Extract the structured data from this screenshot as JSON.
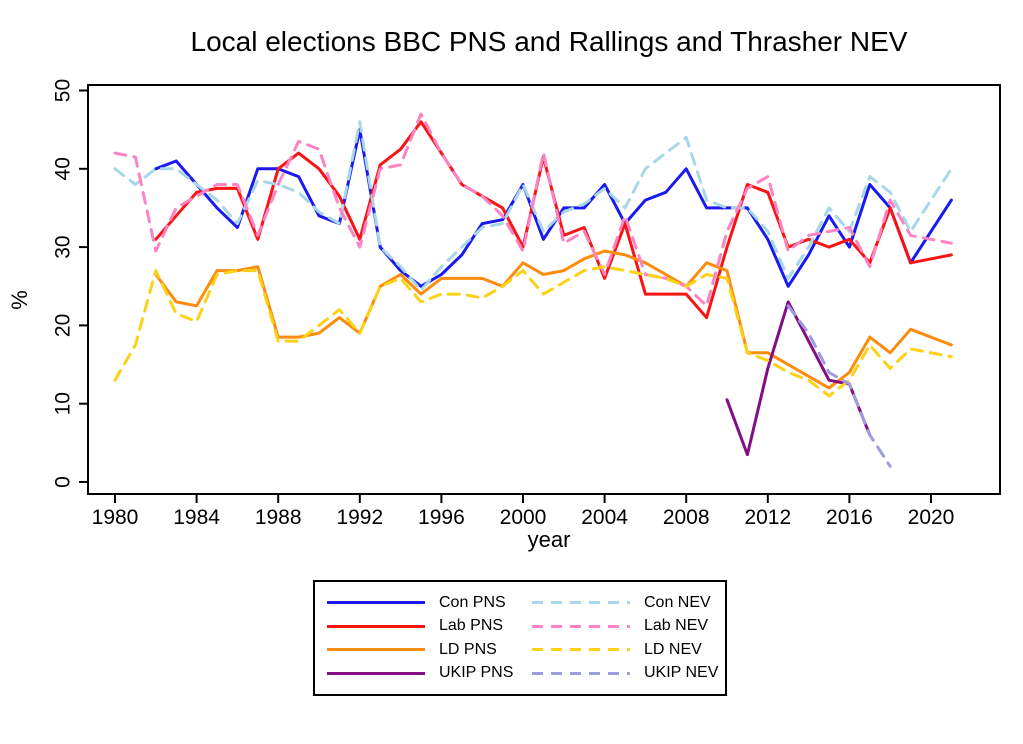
{
  "chart_data": {
    "type": "line",
    "title": "Local elections BBC PNS and Rallings and Thrasher NEV",
    "xlabel": "year",
    "ylabel": "%",
    "ylim": [
      0,
      50
    ],
    "xlim": [
      1980,
      2021
    ],
    "grid": false,
    "legend_position": "bottom",
    "note_2020": "no data for 2020; lines connect 2019 to 2021",
    "years": [
      1980,
      1981,
      1982,
      1983,
      1984,
      1985,
      1986,
      1987,
      1988,
      1989,
      1990,
      1991,
      1992,
      1993,
      1994,
      1995,
      1996,
      1997,
      1998,
      1999,
      2000,
      2001,
      2002,
      2003,
      2004,
      2005,
      2006,
      2007,
      2008,
      2009,
      2010,
      2011,
      2012,
      2013,
      2014,
      2015,
      2016,
      2017,
      2018,
      2019,
      2020,
      2021
    ],
    "yticks": [
      0,
      10,
      20,
      30,
      40,
      50
    ],
    "xticks": [
      1980,
      1984,
      1988,
      1992,
      1996,
      2000,
      2004,
      2008,
      2012,
      2016,
      2020
    ],
    "series": [
      {
        "name": "Con PNS",
        "color": "#1A1AF0",
        "dashed": false,
        "values": [
          null,
          null,
          40,
          41,
          38,
          35,
          32.5,
          40,
          40,
          39,
          34,
          33,
          45,
          30,
          27,
          25,
          26.5,
          29,
          33,
          33.5,
          38,
          31,
          35,
          35,
          38,
          33,
          36,
          37,
          40,
          35,
          35,
          35,
          31,
          25,
          29,
          34,
          30,
          38,
          35,
          28,
          null,
          36
        ]
      },
      {
        "name": "Lab PNS",
        "color": "#F81414",
        "dashed": false,
        "values": [
          null,
          null,
          31,
          34,
          37,
          37.5,
          37.5,
          31,
          40,
          42,
          40,
          36.5,
          31,
          40.5,
          42.5,
          46,
          42,
          38,
          36.5,
          35,
          30,
          41.5,
          31.5,
          32.5,
          26,
          33,
          24,
          24,
          24,
          21,
          30,
          38,
          37,
          30,
          31,
          30,
          31,
          28,
          35,
          28,
          null,
          29
        ]
      },
      {
        "name": "LD PNS",
        "color": "#FB8C0D",
        "dashed": false,
        "values": [
          null,
          null,
          26.5,
          23,
          22.5,
          27,
          27,
          27.5,
          18.5,
          18.5,
          19,
          21,
          19,
          25,
          26.5,
          24,
          26,
          26,
          26,
          25,
          28,
          26.5,
          27,
          28.5,
          29.5,
          29,
          28,
          26.5,
          25,
          28,
          27,
          16.5,
          16.5,
          15,
          13.5,
          12,
          14,
          18.5,
          16.5,
          19.5,
          null,
          17.5
        ]
      },
      {
        "name": "UKIP PNS",
        "color": "#840E84",
        "dashed": false,
        "values": [
          null,
          null,
          null,
          null,
          null,
          null,
          null,
          null,
          null,
          null,
          null,
          null,
          null,
          null,
          null,
          null,
          null,
          null,
          null,
          null,
          null,
          null,
          null,
          null,
          null,
          null,
          null,
          null,
          null,
          null,
          10.5,
          3.5,
          14.5,
          23,
          18,
          13,
          12.5,
          6,
          null,
          null,
          null,
          null
        ]
      },
      {
        "name": "Con NEV",
        "color": "#A8D7E8",
        "dashed": true,
        "values": [
          40,
          38,
          40,
          40,
          38,
          36,
          33,
          38.5,
          38,
          37,
          34.5,
          33,
          46,
          30,
          27.5,
          24.5,
          27.5,
          30,
          32.5,
          33,
          38,
          32,
          34.5,
          35.5,
          37.5,
          35,
          40,
          42,
          44,
          36,
          35,
          35,
          32,
          26,
          30,
          35,
          32,
          39,
          37,
          32,
          null,
          40
        ]
      },
      {
        "name": "Lab NEV",
        "color": "#FC84C4",
        "dashed": true,
        "values": [
          42,
          41.5,
          29.5,
          35,
          36.5,
          38,
          38,
          31.5,
          38,
          43.5,
          42.5,
          35,
          30,
          40,
          40.5,
          47,
          42,
          38,
          36.5,
          34,
          29.5,
          42,
          30.5,
          32,
          26.5,
          34,
          26.5,
          26,
          25,
          22.5,
          32,
          37.5,
          39,
          29.5,
          31.5,
          32,
          32.5,
          27.5,
          36,
          31.5,
          null,
          30.5
        ]
      },
      {
        "name": "LD NEV",
        "color": "#FCD116",
        "dashed": true,
        "values": [
          13,
          17.5,
          27,
          21.5,
          20.5,
          26.5,
          27,
          27,
          18,
          18,
          20,
          22,
          19,
          25,
          26,
          23,
          24,
          24,
          23.5,
          25,
          27,
          24,
          25.5,
          27,
          27.5,
          27,
          26.5,
          26,
          25,
          26.5,
          26,
          16.5,
          15.5,
          14,
          13,
          11,
          13,
          17.5,
          14.5,
          17,
          null,
          16
        ]
      },
      {
        "name": "UKIP NEV",
        "color": "#9C9CDE",
        "dashed": true,
        "values": [
          null,
          null,
          null,
          null,
          null,
          null,
          null,
          null,
          null,
          null,
          null,
          null,
          null,
          null,
          null,
          null,
          null,
          null,
          null,
          null,
          null,
          null,
          null,
          null,
          null,
          null,
          null,
          null,
          null,
          null,
          null,
          null,
          null,
          22.5,
          19,
          14,
          12.5,
          6,
          2,
          null,
          null,
          null
        ]
      }
    ]
  }
}
